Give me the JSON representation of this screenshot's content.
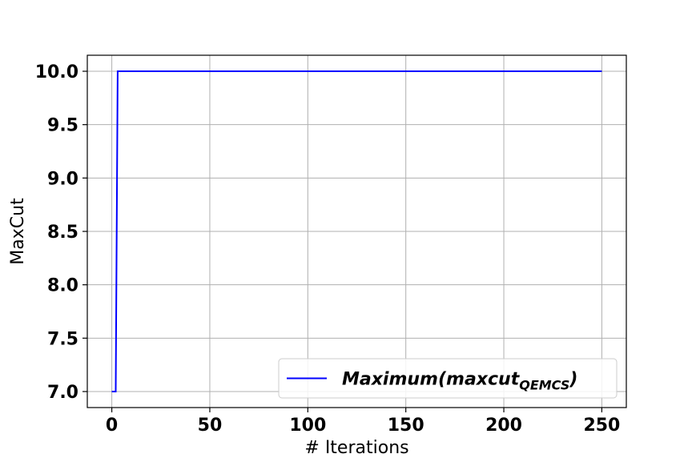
{
  "chart_data": {
    "type": "line",
    "title": "",
    "xlabel": "# Iterations",
    "ylabel": "MaxCut",
    "xlim": [
      -12.5,
      262.5
    ],
    "ylim": [
      6.85,
      10.15
    ],
    "xticks": [
      0,
      50,
      100,
      150,
      200,
      250
    ],
    "yticks": [
      7.0,
      7.5,
      8.0,
      8.5,
      9.0,
      9.5,
      10.0
    ],
    "xtick_labels": [
      "0",
      "50",
      "100",
      "150",
      "200",
      "250"
    ],
    "ytick_labels": [
      "7.0",
      "7.5",
      "8.0",
      "8.5",
      "9.0",
      "9.5",
      "10.0"
    ],
    "grid": true,
    "legend_position": "bottom-right",
    "series": [
      {
        "name": "Maximum(maxcut_QEMCS)",
        "name_main": "Maximum(maxcut",
        "name_sub": "QEMCS",
        "name_close": ")",
        "color": "#0000ff",
        "x": [
          0,
          1,
          2,
          3,
          250
        ],
        "y": [
          7.0,
          7.0,
          7.0,
          10.0,
          10.0
        ]
      }
    ]
  }
}
